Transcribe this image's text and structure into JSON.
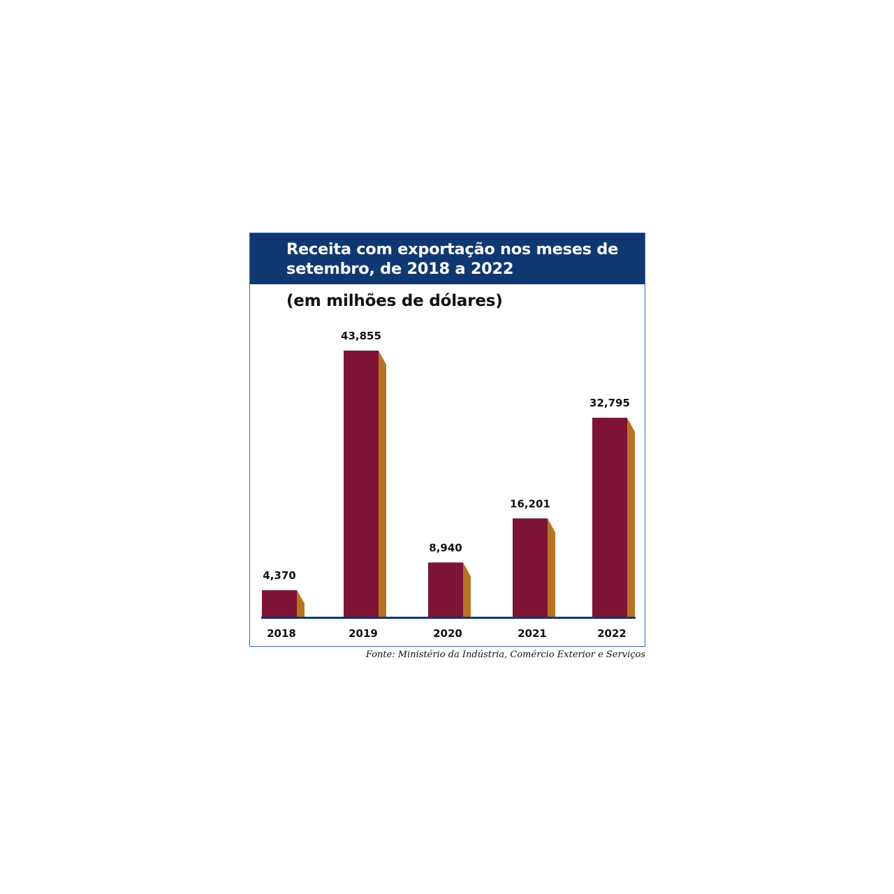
{
  "chart_data": {
    "type": "bar",
    "title": "Receita com exportação nos meses de setembro, de 2018 a 2022",
    "subtitle": "(em milhões de dólares)",
    "categories": [
      "2018",
      "2019",
      "2020",
      "2021",
      "2022"
    ],
    "values": [
      4.37,
      43.855,
      8.94,
      16.201,
      32.795
    ],
    "value_labels": [
      "4,370",
      "43,855",
      "8,940",
      "16,201",
      "32,795"
    ],
    "source": "Fonte: Ministério da Indústria, Comércio Exterior e Serviços",
    "ylim": [
      0,
      43.855
    ],
    "grid": false,
    "colors": {
      "header": "#0f3873",
      "bar_front": "#7d1436",
      "bar_side": "#b8731e",
      "baseline": "#0f3873",
      "border": "#2e6db5"
    }
  }
}
